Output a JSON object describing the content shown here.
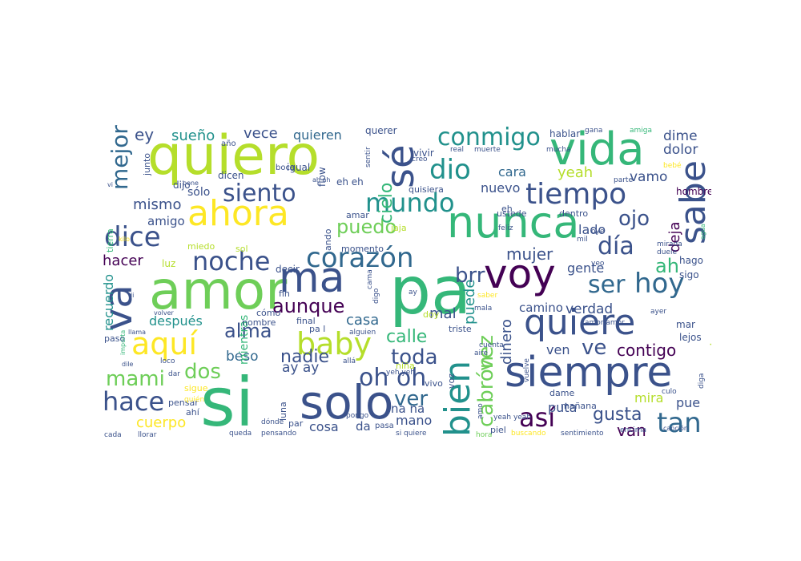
{
  "palette": {
    "dark_purple": "#440154",
    "indigo": "#3b528b",
    "blue": "#31688e",
    "teal": "#21918c",
    "sea": "#1f9e89",
    "green": "#35b779",
    "lime": "#6ece58",
    "yellow_green": "#b5de2b",
    "yellow": "#fde725"
  },
  "words": [
    {
      "text": "amor",
      "color": "#6ece58"
    },
    {
      "text": "pa",
      "color": "#35b779"
    },
    {
      "text": "quiero",
      "color": "#b5de2b"
    },
    {
      "text": "vida",
      "color": "#35b779"
    },
    {
      "text": "si",
      "color": "#35b779"
    },
    {
      "text": "solo",
      "color": "#3b528b"
    },
    {
      "text": "voy",
      "color": "#440154"
    },
    {
      "text": "nunca",
      "color": "#35b779"
    },
    {
      "text": "siempre",
      "color": "#3b528b"
    },
    {
      "text": "ahora",
      "color": "#fde725"
    },
    {
      "text": "ma",
      "color": "#3b528b"
    },
    {
      "text": "va",
      "color": "#3b528b"
    },
    {
      "text": "sé",
      "color": "#3b528b"
    },
    {
      "text": "quiere",
      "color": "#3b528b"
    },
    {
      "text": "bien",
      "color": "#21918c"
    },
    {
      "text": "sabe",
      "color": "#3b528b"
    },
    {
      "text": "tiempo",
      "color": "#3b528b"
    },
    {
      "text": "corazón",
      "color": "#31688e"
    },
    {
      "text": "noche",
      "color": "#3b528b"
    },
    {
      "text": "aquí",
      "color": "#fde725"
    },
    {
      "text": "baby",
      "color": "#b5de2b"
    },
    {
      "text": "hoy",
      "color": "#31688e"
    },
    {
      "text": "mundo",
      "color": "#21918c"
    },
    {
      "text": "dio",
      "color": "#21918c"
    },
    {
      "text": "siento",
      "color": "#3b528b"
    },
    {
      "text": "dice",
      "color": "#3b528b"
    },
    {
      "text": "conmigo",
      "color": "#21918c"
    },
    {
      "text": "hace",
      "color": "#3b528b"
    },
    {
      "text": "así",
      "color": "#440154"
    },
    {
      "text": "tan",
      "color": "#31688e"
    },
    {
      "text": "ser",
      "color": "#31688e"
    },
    {
      "text": "oh oh",
      "color": "#3b528b"
    },
    {
      "text": "día",
      "color": "#3b528b"
    },
    {
      "text": "mejor",
      "color": "#31688e"
    },
    {
      "text": "cabrón",
      "color": "#6ece58"
    },
    {
      "text": "vez",
      "color": "#6ece58"
    },
    {
      "text": "mami",
      "color": "#6ece58"
    },
    {
      "text": "dos",
      "color": "#6ece58"
    },
    {
      "text": "ver",
      "color": "#31688e"
    },
    {
      "text": "toda",
      "color": "#3b528b"
    },
    {
      "text": "alma",
      "color": "#3b528b"
    },
    {
      "text": "puedo",
      "color": "#6ece58"
    },
    {
      "text": "brr",
      "color": "#3b528b"
    },
    {
      "text": "ojo",
      "color": "#3b528b"
    },
    {
      "text": "ve",
      "color": "#3b528b"
    },
    {
      "text": "ah",
      "color": "#35b779"
    },
    {
      "text": "aunque",
      "color": "#440154"
    },
    {
      "text": "mujer",
      "color": "#3b528b"
    },
    {
      "text": "cielo",
      "color": "#35b779"
    },
    {
      "text": "nadie",
      "color": "#3b528b"
    },
    {
      "text": "contigo",
      "color": "#440154"
    },
    {
      "text": "gusta",
      "color": "#3b528b"
    },
    {
      "text": "van",
      "color": "#440154"
    },
    {
      "text": "calle",
      "color": "#35b779"
    },
    {
      "text": "cuerpo",
      "color": "#fde725"
    },
    {
      "text": "deja",
      "color": "#440154"
    },
    {
      "text": "quiera",
      "color": "#b5de2b"
    },
    {
      "text": "puede",
      "color": "#21918c"
    },
    {
      "text": "dinero",
      "color": "#3b528b"
    },
    {
      "text": "ay ay",
      "color": "#3b528b"
    },
    {
      "text": "mismo",
      "color": "#3b528b"
    },
    {
      "text": "mal",
      "color": "#3b528b"
    },
    {
      "text": "casa",
      "color": "#31688e"
    },
    {
      "text": "hacer",
      "color": "#440154"
    },
    {
      "text": "ey",
      "color": "#3b528b"
    },
    {
      "text": "sueño",
      "color": "#21918c"
    },
    {
      "text": "vece",
      "color": "#3b528b"
    },
    {
      "text": "quieren",
      "color": "#31688e"
    },
    {
      "text": "dime",
      "color": "#3b528b"
    },
    {
      "text": "dolor",
      "color": "#3b528b"
    },
    {
      "text": "vamo",
      "color": "#3b528b"
    },
    {
      "text": "cara",
      "color": "#31688e"
    },
    {
      "text": "yeah",
      "color": "#b5de2b"
    },
    {
      "text": "nuevo",
      "color": "#3b528b"
    },
    {
      "text": "lado",
      "color": "#3b528b"
    },
    {
      "text": "gente",
      "color": "#3b528b"
    },
    {
      "text": "verdad",
      "color": "#3b528b"
    },
    {
      "text": "camino",
      "color": "#3b528b"
    },
    {
      "text": "después",
      "color": "#21918c"
    },
    {
      "text": "recuerdo",
      "color": "#21918c"
    },
    {
      "text": "beso",
      "color": "#31688e"
    },
    {
      "text": "mira",
      "color": "#b5de2b"
    },
    {
      "text": "pue",
      "color": "#3b528b"
    },
    {
      "text": "puta",
      "color": "#3b528b"
    },
    {
      "text": "ven",
      "color": "#3b528b"
    },
    {
      "text": "mano",
      "color": "#3b528b"
    },
    {
      "text": "na na",
      "color": "#3b528b"
    },
    {
      "text": "cosa",
      "color": "#3b528b"
    },
    {
      "text": "da",
      "color": "#3b528b"
    },
    {
      "text": "mientras",
      "color": "#35b779"
    },
    {
      "text": "sólo",
      "color": "#3b528b"
    },
    {
      "text": "amigo",
      "color": "#3b528b"
    },
    {
      "text": "hago",
      "color": "#3b528b"
    },
    {
      "text": "sigo",
      "color": "#3b528b"
    },
    {
      "text": "mar",
      "color": "#3b528b"
    },
    {
      "text": "lejos",
      "color": "#3b528b"
    },
    {
      "text": "hombre",
      "color": "#440154"
    },
    {
      "text": "hablar",
      "color": "#3b528b"
    },
    {
      "text": "quisiera",
      "color": "#3b528b"
    },
    {
      "text": "querer",
      "color": "#3b528b"
    },
    {
      "text": "decir",
      "color": "#3b528b"
    },
    {
      "text": "miedo",
      "color": "#b5de2b"
    },
    {
      "text": "sol",
      "color": "#b5de2b"
    },
    {
      "text": "luz",
      "color": "#b5de2b"
    },
    {
      "text": "dicen",
      "color": "#3b528b"
    },
    {
      "text": "igual",
      "color": "#3b528b"
    },
    {
      "text": "dijo",
      "color": "#3b528b"
    },
    {
      "text": "eh eh",
      "color": "#3b528b"
    },
    {
      "text": "flow",
      "color": "#3b528b"
    },
    {
      "text": "vivir",
      "color": "#3b528b"
    },
    {
      "text": "ando",
      "color": "#3b528b"
    },
    {
      "text": "amar",
      "color": "#3b528b"
    },
    {
      "text": "jaja",
      "color": "#b5de2b"
    },
    {
      "text": "momento",
      "color": "#3b528b"
    },
    {
      "text": "fin",
      "color": "#3b528b"
    },
    {
      "text": "cómo",
      "color": "#3b528b"
    },
    {
      "text": "final",
      "color": "#3b528b"
    },
    {
      "text": "pa l",
      "color": "#3b528b"
    },
    {
      "text": "triste",
      "color": "#3b528b"
    },
    {
      "text": "niña",
      "color": "#b5de2b"
    },
    {
      "text": "paso",
      "color": "#3b528b"
    },
    {
      "text": "nombre",
      "color": "#3b528b"
    },
    {
      "text": "tierra",
      "color": "#35b779"
    },
    {
      "text": "junto",
      "color": "#3b528b"
    },
    {
      "text": "año",
      "color": "#3b528b"
    },
    {
      "text": "boca",
      "color": "#3b528b"
    },
    {
      "text": "eh",
      "color": "#3b528b"
    },
    {
      "text": "dentro",
      "color": "#3b528b"
    },
    {
      "text": "ustede",
      "color": "#3b528b"
    },
    {
      "text": "vivo",
      "color": "#3b528b"
    },
    {
      "text": "voz",
      "color": "#3b528b"
    },
    {
      "text": "dame",
      "color": "#3b528b"
    },
    {
      "text": "mañana",
      "color": "#3b528b"
    },
    {
      "text": "piel",
      "color": "#3b528b"
    },
    {
      "text": "buscando",
      "color": "#fde725"
    },
    {
      "text": "sentimiento",
      "color": "#3b528b"
    },
    {
      "text": "encima",
      "color": "#3b528b"
    },
    {
      "text": "doy",
      "color": "#b5de2b"
    },
    {
      "text": "pasa",
      "color": "#3b528b"
    },
    {
      "text": "par",
      "color": "#3b528b"
    },
    {
      "text": "luna",
      "color": "#3b528b"
    },
    {
      "text": "sigue",
      "color": "#fde725"
    },
    {
      "text": "pensar",
      "color": "#3b528b"
    },
    {
      "text": "ahí",
      "color": "#3b528b"
    },
    {
      "text": "cada",
      "color": "#3b528b"
    },
    {
      "text": "llorar",
      "color": "#3b528b"
    },
    {
      "text": "queda",
      "color": "#3b528b"
    },
    {
      "text": "pensando",
      "color": "#3b528b"
    },
    {
      "text": "hora",
      "color": "#6ece58"
    },
    {
      "text": "si quiere",
      "color": "#3b528b"
    },
    {
      "text": "amo",
      "color": "#3b528b"
    },
    {
      "text": "culo",
      "color": "#3b528b"
    },
    {
      "text": "canción",
      "color": "#3b528b"
    },
    {
      "text": "diga",
      "color": "#3b528b"
    },
    {
      "text": "mirada",
      "color": "#3b528b"
    },
    {
      "text": "duele",
      "color": "#3b528b"
    },
    {
      "text": "ayer",
      "color": "#3b528b"
    },
    {
      "text": "gana",
      "color": "#3b528b"
    },
    {
      "text": "amiga",
      "color": "#35b779"
    },
    {
      "text": "mucha",
      "color": "#3b528b"
    },
    {
      "text": "real",
      "color": "#3b528b"
    },
    {
      "text": "muerte",
      "color": "#3b528b"
    },
    {
      "text": "sentir",
      "color": "#3b528b"
    },
    {
      "text": "creo",
      "color": "#3b528b"
    },
    {
      "text": "parte",
      "color": "#3b528b"
    },
    {
      "text": "bebé",
      "color": "#fde725"
    },
    {
      "text": "feliz",
      "color": "#3b528b"
    },
    {
      "text": "mil",
      "color": "#3b528b"
    },
    {
      "text": "oye",
      "color": "#3b528b"
    },
    {
      "text": "agua",
      "color": "#35b779"
    },
    {
      "text": "veo",
      "color": "#3b528b"
    },
    {
      "text": "saber",
      "color": "#fde725"
    },
    {
      "text": "mala",
      "color": "#3b528b"
    },
    {
      "text": "amor amor",
      "color": "#3b528b"
    },
    {
      "text": "cuenta",
      "color": "#3b528b"
    },
    {
      "text": "aire",
      "color": "#3b528b"
    },
    {
      "text": "vuelve",
      "color": "#3b528b"
    },
    {
      "text": "yeah yeah",
      "color": "#3b528b"
    },
    {
      "text": "allá",
      "color": "#3b528b"
    },
    {
      "text": "yeh yeh",
      "color": "#3b528b"
    },
    {
      "text": "alguien",
      "color": "#3b528b"
    },
    {
      "text": "cama",
      "color": "#3b528b"
    },
    {
      "text": "digo",
      "color": "#3b528b"
    },
    {
      "text": "ay",
      "color": "#3b528b"
    },
    {
      "text": "pongo",
      "color": "#3b528b"
    },
    {
      "text": "quién",
      "color": "#fde725"
    },
    {
      "text": "dónde",
      "color": "#3b528b"
    },
    {
      "text": "dar",
      "color": "#3b528b"
    },
    {
      "text": "loco",
      "color": "#3b528b"
    },
    {
      "text": "dile",
      "color": "#3b528b"
    },
    {
      "text": "importa",
      "color": "#35b779"
    },
    {
      "text": "llama",
      "color": "#3b528b"
    },
    {
      "text": "volver",
      "color": "#3b528b"
    },
    {
      "text": "di",
      "color": "#3b528b"
    },
    {
      "text": "kilo",
      "color": "#fde725"
    },
    {
      "text": "vi",
      "color": "#3b528b"
    },
    {
      "text": "pone",
      "color": "#3b528b"
    },
    {
      "text": "ah ah",
      "color": "#3b528b"
    }
  ]
}
